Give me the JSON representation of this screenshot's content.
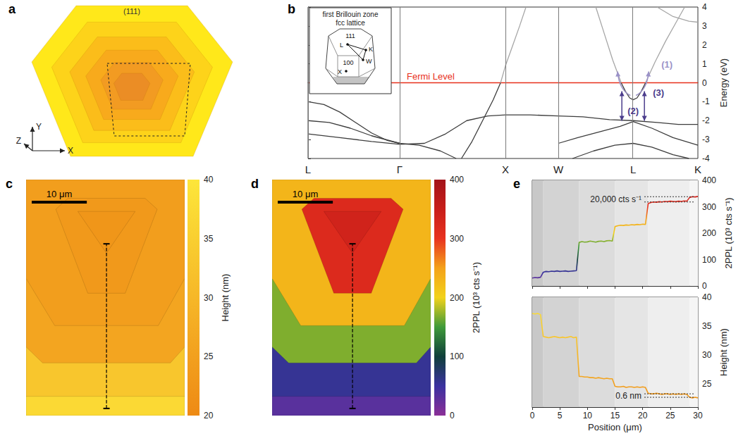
{
  "chart_data": [
    {
      "type": "diagram",
      "panel_label": "a",
      "annotations": [
        "(111)"
      ],
      "axis_labels": [
        "X",
        "Y",
        "Z"
      ]
    },
    {
      "type": "line",
      "panel_label": "b",
      "ylabel": "Energy (eV)",
      "xlim": [
        0,
        3.685
      ],
      "xticks": [
        {
          "value": 0,
          "label": "L"
        },
        {
          "value": 0.866,
          "label": "Γ"
        },
        {
          "value": 1.866,
          "label": "X"
        },
        {
          "value": 2.366,
          "label": "W"
        },
        {
          "value": 3.073,
          "label": "L"
        },
        {
          "value": 3.685,
          "label": "K"
        }
      ],
      "ylim": [
        -4,
        4
      ],
      "yticks": [
        -4,
        -3,
        -2,
        -1,
        0,
        1,
        2,
        3,
        4
      ],
      "grid": "x",
      "fermi_level": {
        "value": 0,
        "label": "Fermi Level",
        "color": "#e8301c"
      },
      "annotations": [
        "(1)",
        "(2)",
        "(3)"
      ],
      "inset": {
        "title": [
          "first Brillouin zone",
          "fcc lattice"
        ],
        "labels": [
          "111",
          "L",
          "K",
          "W",
          "100",
          "X"
        ]
      },
      "series": [
        {
          "color": "#3d3d3d",
          "x": [
            0,
            0.15,
            0.3,
            0.45,
            0.6,
            0.75,
            0.866
          ],
          "values": [
            -1.0,
            -1.15,
            -1.55,
            -2.1,
            -2.65,
            -3.05,
            -3.2
          ]
        },
        {
          "color": "#3d3d3d",
          "x": [
            0,
            0.2,
            0.4,
            0.6,
            0.866,
            1.05,
            1.25,
            1.4
          ],
          "values": [
            -2.0,
            -2.1,
            -2.4,
            -2.8,
            -3.2,
            -3.3,
            -3.6,
            -4.0
          ]
        },
        {
          "color": "#3d3d3d",
          "x": [
            0,
            0.3,
            0.6,
            0.866,
            1.1,
            1.3,
            1.5,
            1.7,
            1.866,
            2.1,
            2.366,
            2.6,
            2.85,
            3.073,
            3.3,
            3.5,
            3.685
          ],
          "values": [
            -2.7,
            -2.9,
            -3.1,
            -3.25,
            -3.2,
            -2.7,
            -2.0,
            -1.75,
            -1.7,
            -1.7,
            -1.75,
            -1.8,
            -1.95,
            -2.0,
            -2.1,
            -2.2,
            -2.2
          ]
        },
        {
          "color": "#3d3d3d",
          "x": [
            1.45,
            1.55,
            1.65,
            1.75,
            1.82
          ],
          "values": [
            -4.0,
            -3.1,
            -2.0,
            -0.9,
            0.0
          ]
        },
        {
          "color": "#a6a6a6",
          "x": [
            1.82,
            1.866,
            1.93,
            2.0,
            2.06
          ],
          "values": [
            0.0,
            0.9,
            1.9,
            3.0,
            4.0
          ]
        },
        {
          "color": "#3d3d3d",
          "x": [
            2.366,
            2.55,
            2.75,
            2.95,
            3.073,
            3.25,
            3.45,
            3.685
          ],
          "values": [
            -3.2,
            -2.9,
            -2.6,
            -2.3,
            -2.05,
            -2.4,
            -2.9,
            -3.3
          ]
        },
        {
          "color": "#3d3d3d",
          "x": [
            2.5,
            2.7,
            2.9,
            3.073,
            3.25,
            3.45,
            3.6
          ],
          "values": [
            -4.0,
            -3.6,
            -3.3,
            -3.2,
            -3.4,
            -3.8,
            -4.0
          ]
        },
        {
          "color": "#3d3d3d",
          "x": [
            2.96,
            3.0,
            3.04,
            3.073,
            3.11,
            3.15,
            3.19
          ],
          "values": [
            0.0,
            -0.45,
            -0.8,
            -0.9,
            -0.8,
            -0.45,
            0.0
          ]
        },
        {
          "color": "#a6a6a6",
          "x": [
            2.72,
            2.8,
            2.88,
            2.96
          ],
          "values": [
            4.0,
            2.6,
            1.2,
            0.0
          ]
        },
        {
          "color": "#a6a6a6",
          "x": [
            3.19,
            3.28,
            3.38,
            3.48,
            3.56
          ],
          "values": [
            0.0,
            1.1,
            2.2,
            3.2,
            4.0
          ]
        },
        {
          "color": "#a6a6a6",
          "x": [
            3.3,
            3.45,
            3.6,
            3.685
          ],
          "values": [
            4.0,
            3.5,
            3.25,
            3.2
          ]
        }
      ]
    },
    {
      "type": "map",
      "panel_label": "c",
      "xlim": [
        0,
        28.8
      ],
      "ylim": [
        0,
        43
      ],
      "tick_labels": false,
      "terraces": {
        "values": [
          37.1,
          33.1,
          26.1,
          24.5,
          23.3,
          22.7
        ],
        "polygons": [
          [
            [
              0,
              0
            ],
            [
              28.8,
              0
            ],
            [
              28.8,
              43
            ],
            [
              0,
              43
            ]
          ],
          [
            [
              0,
              3.5
            ],
            [
              28.8,
              3.5
            ],
            [
              28.8,
              43
            ],
            [
              0,
              43
            ]
          ],
          [
            [
              0,
              12.5
            ],
            [
              3,
              9.6
            ],
            [
              26.2,
              9.6
            ],
            [
              28.8,
              12.5
            ],
            [
              28.8,
              43
            ],
            [
              0,
              43
            ]
          ],
          [
            [
              0,
              25
            ],
            [
              5.2,
              16.4
            ],
            [
              24,
              16.4
            ],
            [
              28.8,
              25
            ],
            [
              28.8,
              43
            ],
            [
              0,
              43
            ]
          ],
          [
            [
              7.6,
              39.6
            ],
            [
              5.4,
              37.6
            ],
            [
              11.2,
              22.3
            ],
            [
              18,
              22.3
            ],
            [
              23.8,
              37.6
            ],
            [
              21.6,
              39.6
            ]
          ],
          [
            [
              9.4,
              37.2
            ],
            [
              19.8,
              37.2
            ],
            [
              14.6,
              29.6
            ]
          ]
        ]
      },
      "profile": {
        "x": [
          14.6,
          14.6
        ],
        "y": [
          1.3,
          31.3
        ],
        "line_style": "dashed",
        "color": "#000000"
      },
      "scale_bar": {
        "label": "10 μm",
        "length": 10
      },
      "colorbar": {
        "label": "Height (nm)",
        "range": [
          20,
          40
        ],
        "ticks": [
          20,
          25,
          30,
          35,
          40
        ],
        "colors": [
          "#ee8a14",
          "#f2a01e",
          "#f6b728",
          "#f9cf30",
          "#fde63a"
        ]
      }
    },
    {
      "type": "map",
      "panel_label": "d",
      "xlim": [
        0,
        28.8
      ],
      "ylim": [
        0,
        43
      ],
      "tick_labels": false,
      "terraces": {
        "values": [
          31,
          56,
          168,
          230,
          319,
          337
        ],
        "polygons": [
          [
            [
              0,
              0
            ],
            [
              28.8,
              0
            ],
            [
              28.8,
              43
            ],
            [
              0,
              43
            ]
          ],
          [
            [
              0,
              3.5
            ],
            [
              28.8,
              3.5
            ],
            [
              28.8,
              43
            ],
            [
              0,
              43
            ]
          ],
          [
            [
              0,
              12.5
            ],
            [
              3,
              9.6
            ],
            [
              26.2,
              9.6
            ],
            [
              28.8,
              12.5
            ],
            [
              28.8,
              43
            ],
            [
              0,
              43
            ]
          ],
          [
            [
              0,
              25
            ],
            [
              5.2,
              16.4
            ],
            [
              24,
              16.4
            ],
            [
              28.8,
              25
            ],
            [
              28.8,
              43
            ],
            [
              0,
              43
            ]
          ],
          [
            [
              7.6,
              39.6
            ],
            [
              5.4,
              37.6
            ],
            [
              11.2,
              22.3
            ],
            [
              18,
              22.3
            ],
            [
              23.8,
              37.6
            ],
            [
              21.6,
              39.6
            ]
          ],
          [
            [
              9.4,
              37.2
            ],
            [
              19.8,
              37.2
            ],
            [
              14.6,
              29.6
            ]
          ]
        ]
      },
      "profile": {
        "x": [
          14.6,
          14.6
        ],
        "y": [
          1.3,
          31.3
        ],
        "line_style": "dashed",
        "color": "#000000"
      },
      "scale_bar": {
        "label": "10 μm",
        "length": 10
      },
      "colorbar": {
        "label": "2PPL (10³ cts s⁻¹)",
        "range": [
          0,
          400
        ],
        "ticks": [
          0,
          100,
          200,
          300,
          400
        ],
        "colors": [
          "#8b2f97",
          "#3b32a0",
          "#0f3f3a",
          "#3f9a3a",
          "#f2d21a",
          "#f4a21a",
          "#e8321f",
          "#c81e1a",
          "#a3141a"
        ]
      }
    },
    {
      "type": "line",
      "panel_label": "e",
      "ylabel": "2PPL (10³ cts s⁻¹)",
      "xlim": [
        0,
        30
      ],
      "xticks": [
        0,
        5,
        10,
        15,
        20,
        25,
        30
      ],
      "ylim": [
        0,
        400
      ],
      "yticks": [
        0,
        100,
        200,
        300,
        400
      ],
      "tick_labels": "y",
      "shaded_regions": [
        0,
        2,
        8.5,
        15,
        21,
        28.5,
        30
      ],
      "color_scale": {
        "range": [
          0,
          400
        ],
        "colors": [
          "#8b2f97",
          "#3b32a0",
          "#0f3f3a",
          "#3f9a3a",
          "#f2d21a",
          "#f4a21a",
          "#e8321f",
          "#c81e1a",
          "#a3141a"
        ]
      },
      "annotations": [
        {
          "text": "20,000 cts s⁻¹",
          "values": [
            318,
            338
          ]
        }
      ],
      "x": [
        0,
        0.5,
        1,
        1.5,
        2,
        2.5,
        3,
        3.5,
        4,
        4.5,
        5,
        5.5,
        6,
        6.5,
        7,
        7.5,
        8,
        8.5,
        9,
        9.5,
        10,
        10.5,
        11,
        11.5,
        12,
        12.5,
        13,
        13.5,
        14,
        14.5,
        15,
        15.5,
        16,
        16.5,
        17,
        17.5,
        18,
        18.5,
        19,
        19.5,
        20,
        20.5,
        21,
        21.5,
        22,
        22.5,
        23,
        23.5,
        24,
        24.5,
        25,
        25.5,
        26,
        26.5,
        27,
        27.5,
        28,
        28.5,
        29,
        29.5,
        30
      ],
      "values": [
        30,
        32,
        31,
        33,
        52,
        55,
        54,
        56,
        55,
        57,
        55,
        56,
        57,
        55,
        56,
        57,
        58,
        165,
        168,
        166,
        167,
        170,
        168,
        166,
        169,
        170,
        168,
        171,
        172,
        170,
        225,
        228,
        230,
        229,
        231,
        230,
        232,
        231,
        233,
        232,
        234,
        233,
        312,
        316,
        318,
        317,
        319,
        318,
        320,
        319,
        321,
        320,
        319,
        321,
        320,
        322,
        321,
        335,
        338,
        337,
        339
      ]
    },
    {
      "type": "line",
      "xlabel": "Position (μm)",
      "ylabel": "Height (nm)",
      "xlim": [
        0,
        30
      ],
      "xticks": [
        0,
        5,
        10,
        15,
        20,
        25,
        30
      ],
      "ylim": [
        21,
        40
      ],
      "yticks": [
        25,
        30,
        35,
        40
      ],
      "shaded_regions": [
        0,
        2,
        8.5,
        15,
        21,
        28.5,
        30
      ],
      "color_scale": {
        "range": [
          20,
          40
        ],
        "colors": [
          "#ee8a14",
          "#f2a01e",
          "#f6b728",
          "#f9cf30",
          "#fde63a"
        ]
      },
      "annotations": [
        {
          "text": "0.6 nm",
          "values": [
            23.3,
            22.7
          ]
        }
      ],
      "x": [
        0,
        0.5,
        1,
        1.5,
        2,
        2.5,
        3,
        3.5,
        4,
        4.5,
        5,
        5.5,
        6,
        6.5,
        7,
        7.5,
        8,
        8.5,
        9,
        9.5,
        10,
        10.5,
        11,
        11.5,
        12,
        12.5,
        13,
        13.5,
        14,
        14.5,
        15,
        15.5,
        16,
        16.5,
        17,
        17.5,
        18,
        18.5,
        19,
        19.5,
        20,
        20.5,
        21,
        21.5,
        22,
        22.5,
        23,
        23.5,
        24,
        24.5,
        25,
        25.5,
        26,
        26.5,
        27,
        27.5,
        28,
        28.5,
        29,
        29.5,
        30
      ],
      "values": [
        37.2,
        37.1,
        37.2,
        37.0,
        33.2,
        33.1,
        33.0,
        33.1,
        33.2,
        33.1,
        33.0,
        33.1,
        33.0,
        33.1,
        33.2,
        33.0,
        33.1,
        26.3,
        26.3,
        26.2,
        26.2,
        26.1,
        26.1,
        26.0,
        26.1,
        26.0,
        25.9,
        26.0,
        25.9,
        25.9,
        24.6,
        24.5,
        24.5,
        24.6,
        24.4,
        24.5,
        24.5,
        24.4,
        24.5,
        24.4,
        24.5,
        24.4,
        23.4,
        23.3,
        23.3,
        23.4,
        23.3,
        23.2,
        23.3,
        23.3,
        23.2,
        23.3,
        23.2,
        23.3,
        23.2,
        23.3,
        23.2,
        22.7,
        22.6,
        22.7,
        22.6
      ]
    }
  ]
}
